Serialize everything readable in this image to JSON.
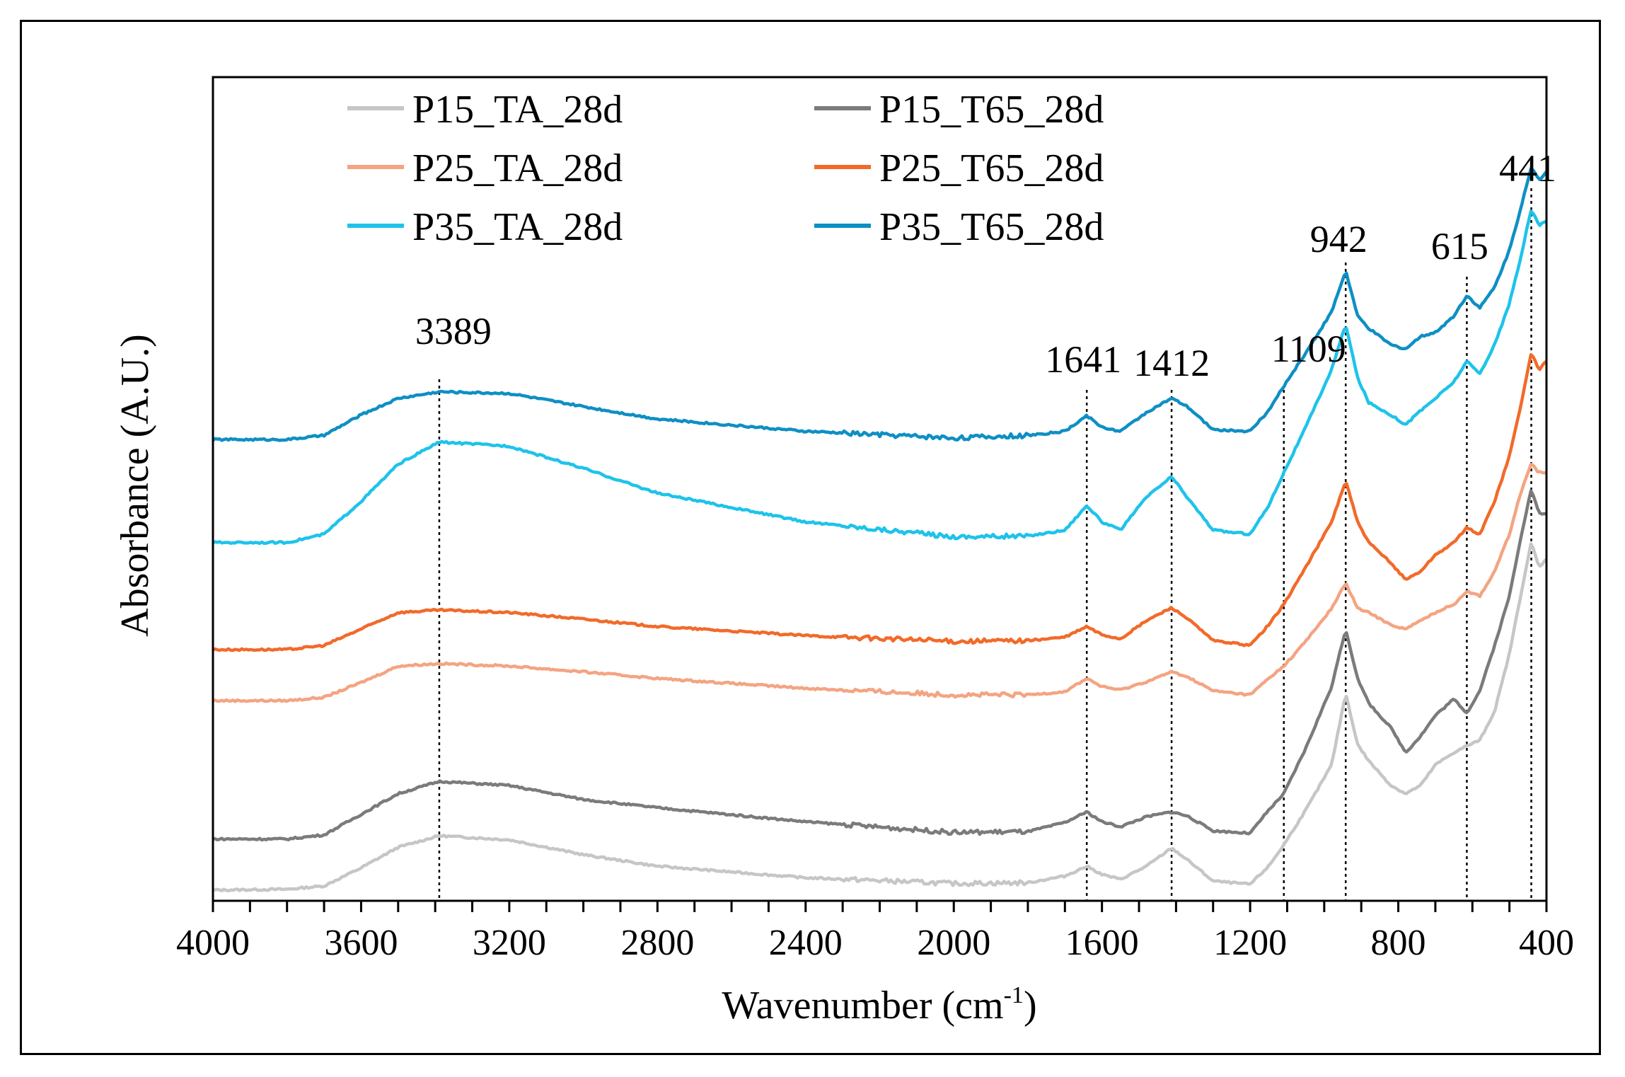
{
  "chart_data": {
    "type": "line",
    "xlabel": "Wavenumber (cm",
    "xlabel_sup": "-1",
    "xlabel_close": ")",
    "ylabel": "Absorbance (A.U.)",
    "xlim": [
      4000,
      400
    ],
    "ylim": [
      0,
      100
    ],
    "x_ticks": [
      4000,
      3600,
      3200,
      2800,
      2400,
      2000,
      1600,
      1200,
      800,
      400
    ],
    "legend_position": "top-left",
    "peak_markers": [
      {
        "label": "3389",
        "x": 3389
      },
      {
        "label": "1641",
        "x": 1641
      },
      {
        "label": "1412",
        "x": 1412
      },
      {
        "label": "1109",
        "x": 1109
      },
      {
        "label": "942",
        "x": 942
      },
      {
        "label": "615",
        "x": 615
      },
      {
        "label": "441",
        "x": 441
      }
    ],
    "series": [
      {
        "name": "P15_TA_28d",
        "color": "#c6c6c6",
        "points": [
          [
            4000,
            1.3
          ],
          [
            3800,
            1.4
          ],
          [
            3700,
            1.8
          ],
          [
            3600,
            4.0
          ],
          [
            3500,
            6.5
          ],
          [
            3389,
            7.9
          ],
          [
            3200,
            7.4
          ],
          [
            3000,
            5.6
          ],
          [
            2800,
            4.2
          ],
          [
            2400,
            2.8
          ],
          [
            2000,
            2.1
          ],
          [
            1800,
            2.2
          ],
          [
            1700,
            3.0
          ],
          [
            1641,
            4.2
          ],
          [
            1600,
            3.2
          ],
          [
            1550,
            2.6
          ],
          [
            1480,
            4.2
          ],
          [
            1412,
            6.4
          ],
          [
            1370,
            5.0
          ],
          [
            1300,
            2.4
          ],
          [
            1200,
            2.0
          ],
          [
            1150,
            4.2
          ],
          [
            1109,
            6.8
          ],
          [
            1050,
            11.0
          ],
          [
            980,
            16.5
          ],
          [
            942,
            25.2
          ],
          [
            910,
            19.0
          ],
          [
            880,
            17.0
          ],
          [
            820,
            14.0
          ],
          [
            780,
            13.0
          ],
          [
            740,
            14.0
          ],
          [
            700,
            16.5
          ],
          [
            650,
            18.0
          ],
          [
            615,
            18.8
          ],
          [
            580,
            19.5
          ],
          [
            540,
            23.0
          ],
          [
            500,
            30.0
          ],
          [
            470,
            37.0
          ],
          [
            441,
            43.5
          ],
          [
            420,
            40.5
          ],
          [
            400,
            41.5
          ]
        ]
      },
      {
        "name": "P15_T65_28d",
        "color": "#7b7b7b",
        "points": [
          [
            4000,
            7.5
          ],
          [
            3800,
            7.5
          ],
          [
            3700,
            8.0
          ],
          [
            3600,
            10.5
          ],
          [
            3500,
            13.0
          ],
          [
            3389,
            14.5
          ],
          [
            3200,
            14.0
          ],
          [
            3000,
            12.3
          ],
          [
            2800,
            11.3
          ],
          [
            2400,
            9.6
          ],
          [
            2000,
            8.3
          ],
          [
            1800,
            8.4
          ],
          [
            1700,
            9.5
          ],
          [
            1641,
            10.8
          ],
          [
            1600,
            9.6
          ],
          [
            1550,
            9.0
          ],
          [
            1480,
            10.2
          ],
          [
            1412,
            10.8
          ],
          [
            1370,
            10.3
          ],
          [
            1300,
            8.5
          ],
          [
            1200,
            8.2
          ],
          [
            1150,
            11.0
          ],
          [
            1109,
            13.0
          ],
          [
            1050,
            18.5
          ],
          [
            980,
            26.0
          ],
          [
            942,
            33.0
          ],
          [
            910,
            27.0
          ],
          [
            880,
            24.0
          ],
          [
            820,
            21.0
          ],
          [
            780,
            18.0
          ],
          [
            740,
            20.0
          ],
          [
            700,
            22.5
          ],
          [
            650,
            24.5
          ],
          [
            615,
            22.8
          ],
          [
            580,
            25.5
          ],
          [
            540,
            31.0
          ],
          [
            500,
            37.0
          ],
          [
            470,
            44.0
          ],
          [
            441,
            50.0
          ],
          [
            420,
            47.0
          ],
          [
            400,
            47.0
          ]
        ]
      },
      {
        "name": "P25_TA_28d",
        "color": "#f4a482",
        "points": [
          [
            4000,
            24.3
          ],
          [
            3800,
            24.3
          ],
          [
            3700,
            24.7
          ],
          [
            3600,
            26.5
          ],
          [
            3500,
            28.5
          ],
          [
            3389,
            28.8
          ],
          [
            3200,
            28.5
          ],
          [
            3000,
            27.8
          ],
          [
            2800,
            27.0
          ],
          [
            2400,
            25.8
          ],
          [
            2000,
            25.0
          ],
          [
            1800,
            25.0
          ],
          [
            1700,
            25.4
          ],
          [
            1641,
            27.0
          ],
          [
            1600,
            26.0
          ],
          [
            1550,
            25.6
          ],
          [
            1480,
            26.6
          ],
          [
            1412,
            27.8
          ],
          [
            1370,
            27.2
          ],
          [
            1300,
            25.5
          ],
          [
            1200,
            25.0
          ],
          [
            1150,
            27.0
          ],
          [
            1109,
            28.5
          ],
          [
            1050,
            31.5
          ],
          [
            980,
            35.5
          ],
          [
            942,
            38.6
          ],
          [
            910,
            35.5
          ],
          [
            880,
            35.0
          ],
          [
            820,
            33.5
          ],
          [
            780,
            33.0
          ],
          [
            740,
            34.0
          ],
          [
            700,
            35.0
          ],
          [
            650,
            36.0
          ],
          [
            615,
            37.6
          ],
          [
            580,
            37.0
          ],
          [
            540,
            40.0
          ],
          [
            500,
            44.5
          ],
          [
            470,
            49.5
          ],
          [
            441,
            53.0
          ],
          [
            420,
            52.0
          ],
          [
            400,
            52.0
          ]
        ]
      },
      {
        "name": "P25_T65_28d",
        "color": "#f26a2a",
        "points": [
          [
            4000,
            30.5
          ],
          [
            3800,
            30.5
          ],
          [
            3700,
            31.0
          ],
          [
            3600,
            33.0
          ],
          [
            3500,
            35.0
          ],
          [
            3389,
            35.3
          ],
          [
            3200,
            35.0
          ],
          [
            3000,
            34.2
          ],
          [
            2800,
            33.3
          ],
          [
            2400,
            32.2
          ],
          [
            2000,
            31.5
          ],
          [
            1800,
            31.6
          ],
          [
            1700,
            32.0
          ],
          [
            1641,
            33.3
          ],
          [
            1600,
            32.3
          ],
          [
            1550,
            31.8
          ],
          [
            1480,
            34.0
          ],
          [
            1412,
            35.6
          ],
          [
            1370,
            34.3
          ],
          [
            1300,
            31.6
          ],
          [
            1200,
            31.0
          ],
          [
            1150,
            33.5
          ],
          [
            1109,
            36.0
          ],
          [
            1050,
            40.5
          ],
          [
            980,
            46.0
          ],
          [
            942,
            51.0
          ],
          [
            910,
            46.0
          ],
          [
            880,
            43.5
          ],
          [
            820,
            41.0
          ],
          [
            780,
            39.0
          ],
          [
            740,
            40.0
          ],
          [
            700,
            42.0
          ],
          [
            650,
            43.5
          ],
          [
            615,
            45.3
          ],
          [
            580,
            44.5
          ],
          [
            540,
            48.5
          ],
          [
            500,
            54.0
          ],
          [
            470,
            60.0
          ],
          [
            441,
            66.5
          ],
          [
            420,
            64.5
          ],
          [
            400,
            65.5
          ]
        ]
      },
      {
        "name": "P35_TA_28d",
        "color": "#1ec3ea",
        "points": [
          [
            4000,
            43.5
          ],
          [
            3800,
            43.5
          ],
          [
            3700,
            44.5
          ],
          [
            3600,
            48.5
          ],
          [
            3500,
            53.0
          ],
          [
            3389,
            55.7
          ],
          [
            3200,
            55.2
          ],
          [
            3000,
            52.5
          ],
          [
            2800,
            49.5
          ],
          [
            2400,
            46.0
          ],
          [
            2000,
            44.2
          ],
          [
            1800,
            44.3
          ],
          [
            1700,
            45.0
          ],
          [
            1641,
            48.0
          ],
          [
            1600,
            46.0
          ],
          [
            1550,
            45.0
          ],
          [
            1480,
            49.0
          ],
          [
            1412,
            51.5
          ],
          [
            1370,
            49.0
          ],
          [
            1300,
            45.0
          ],
          [
            1200,
            44.5
          ],
          [
            1150,
            48.0
          ],
          [
            1109,
            52.0
          ],
          [
            1050,
            57.5
          ],
          [
            980,
            64.5
          ],
          [
            942,
            70.0
          ],
          [
            910,
            63.5
          ],
          [
            880,
            60.5
          ],
          [
            820,
            59.0
          ],
          [
            780,
            57.8
          ],
          [
            740,
            59.5
          ],
          [
            700,
            61.0
          ],
          [
            650,
            63.0
          ],
          [
            615,
            65.5
          ],
          [
            580,
            64.0
          ],
          [
            540,
            67.5
          ],
          [
            500,
            72.5
          ],
          [
            470,
            78.0
          ],
          [
            441,
            84.0
          ],
          [
            420,
            82.0
          ],
          [
            400,
            82.5
          ]
        ]
      },
      {
        "name": "P35_T65_28d",
        "color": "#0e8fc4",
        "points": [
          [
            4000,
            56.0
          ],
          [
            3800,
            56.0
          ],
          [
            3700,
            56.5
          ],
          [
            3600,
            59.0
          ],
          [
            3500,
            61.0
          ],
          [
            3389,
            61.8
          ],
          [
            3200,
            61.6
          ],
          [
            3000,
            60.0
          ],
          [
            2800,
            58.5
          ],
          [
            2400,
            57.0
          ],
          [
            2000,
            56.2
          ],
          [
            1800,
            56.5
          ],
          [
            1700,
            57.0
          ],
          [
            1641,
            58.9
          ],
          [
            1600,
            57.5
          ],
          [
            1550,
            57.0
          ],
          [
            1480,
            59.3
          ],
          [
            1412,
            61.0
          ],
          [
            1370,
            60.0
          ],
          [
            1300,
            57.2
          ],
          [
            1200,
            57.0
          ],
          [
            1150,
            59.5
          ],
          [
            1109,
            62.5
          ],
          [
            1050,
            66.5
          ],
          [
            980,
            71.5
          ],
          [
            942,
            76.5
          ],
          [
            910,
            71.0
          ],
          [
            880,
            69.5
          ],
          [
            820,
            67.5
          ],
          [
            780,
            67.0
          ],
          [
            740,
            68.5
          ],
          [
            700,
            69.0
          ],
          [
            650,
            71.0
          ],
          [
            615,
            73.5
          ],
          [
            580,
            72.0
          ],
          [
            540,
            74.5
          ],
          [
            500,
            79.0
          ],
          [
            470,
            84.0
          ],
          [
            441,
            89.0
          ],
          [
            420,
            87.5
          ],
          [
            400,
            88.5
          ]
        ]
      }
    ]
  }
}
